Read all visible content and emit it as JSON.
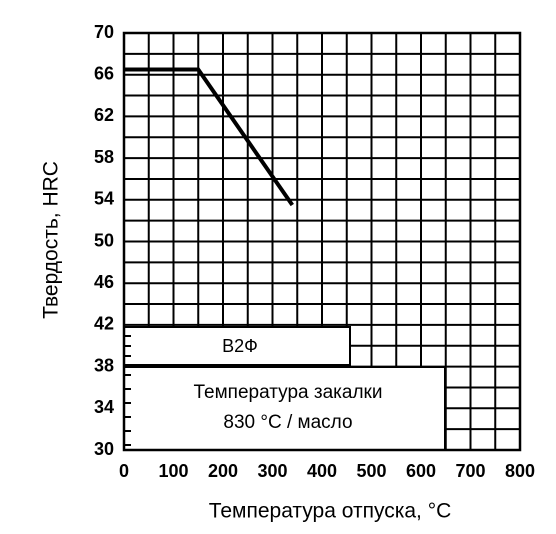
{
  "chart_data": {
    "type": "line",
    "xlabel": "Температура отпуска, °C",
    "ylabel": "Твердость, HRC",
    "x": [
      0,
      150,
      340
    ],
    "series": [
      {
        "name": "В2Ф",
        "color": "#000000",
        "values": [
          66.5,
          66.5,
          53.5
        ]
      }
    ],
    "annotation": [
      "Температура закалки",
      "830 °C / масло"
    ],
    "xlim": [
      0,
      800
    ],
    "xticks": [
      0,
      100,
      200,
      300,
      400,
      500,
      600,
      700,
      800
    ],
    "ylim": [
      30,
      70
    ],
    "yticks": [
      30,
      34,
      38,
      42,
      46,
      50,
      54,
      58,
      62,
      66,
      70
    ],
    "grid": true
  }
}
